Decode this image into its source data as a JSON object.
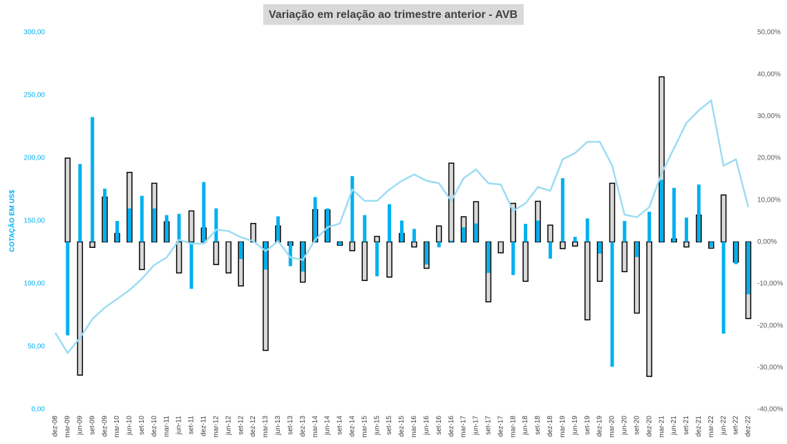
{
  "chart_data": {
    "type": "bar",
    "title": "Variação em relação ao trimestre anterior - AVB",
    "ylabel": "COTAÇÃO EM US$",
    "categories": [
      "dez-08",
      "mar-09",
      "jun-09",
      "set-09",
      "dez-09",
      "mar-10",
      "jun-10",
      "set-10",
      "dez-10",
      "mar-11",
      "jun-11",
      "set-11",
      "dez-11",
      "mar-12",
      "jun-12",
      "set-12",
      "dez-12",
      "mar-13",
      "jun-13",
      "set-13",
      "dez-13",
      "mar-14",
      "jun-14",
      "set-14",
      "dez-14",
      "mar-15",
      "jun-15",
      "set-15",
      "dez-15",
      "mar-16",
      "jun-16",
      "set-16",
      "dez-16",
      "mar-17",
      "jun-17",
      "set-17",
      "dez-17",
      "mar-18",
      "jun-18",
      "set-18",
      "dez-18",
      "mar-19",
      "jun-19",
      "set-19",
      "dez-19",
      "mar-20",
      "jun-20",
      "set-20",
      "dez-20",
      "mar-21",
      "jun-21",
      "set-21",
      "dez-21",
      "mar-22",
      "jun-22",
      "set-22",
      "dez-22"
    ],
    "series": [
      {
        "type": "bar",
        "axis": "y2",
        "color": "#d9d9d9",
        "edgecolor": "#000000",
        "values": [
          null,
          20,
          -31.8,
          -1.3,
          10.7,
          2,
          16.6,
          -6.6,
          14,
          4.8,
          -7.4,
          7.4,
          3.3,
          -5.4,
          -7.4,
          -10.5,
          4.4,
          -25.9,
          3.8,
          -0.8,
          -9.6,
          7.7,
          7.6,
          -0.8,
          -2.1,
          -9.2,
          1.3,
          -8.4,
          2,
          -1.2,
          -6.3,
          3.8,
          18.8,
          6,
          9.6,
          -14.3,
          -2.6,
          9.2,
          -9.4,
          9.7,
          4,
          -1.6,
          -1,
          -18.6,
          -9.4,
          14,
          -7.1,
          -17,
          -32.1,
          39.4,
          0.7,
          -1.2,
          6.4,
          -1.5,
          11.2,
          -4.8,
          -18.3
        ]
      },
      {
        "type": "bar",
        "axis": "y2",
        "color": "#00b0f0",
        "values": [
          null,
          -22.3,
          18.6,
          29.8,
          12.7,
          5,
          8,
          11,
          8,
          6.4,
          6.7,
          -11.2,
          14.3,
          8,
          0,
          -4.1,
          0,
          -6.6,
          6.1,
          -5.8,
          -7.1,
          10.7,
          8,
          -0.8,
          15.7,
          6.4,
          -8.2,
          9,
          5.1,
          3.1,
          -5.4,
          -1.3,
          0.3,
          3.5,
          4.4,
          -7.4,
          0,
          -7.9,
          4.3,
          5.1,
          -4,
          15.2,
          1.2,
          5.6,
          -2.8,
          -29.8,
          5,
          -3.6,
          7.2,
          14.8,
          12.9,
          5.8,
          13.7,
          -1.2,
          -21.9,
          -5.3,
          -12.5
        ]
      },
      {
        "type": "line",
        "axis": "y",
        "color": "#9bdcf3",
        "values": [
          61,
          45,
          57,
          72,
          81,
          88,
          95,
          104,
          115,
          121,
          135,
          132,
          132,
          143,
          142,
          137,
          134,
          126,
          134,
          121,
          119,
          135,
          145,
          148,
          175,
          166,
          166,
          175,
          182,
          187,
          182,
          180,
          166,
          184,
          191,
          180,
          179,
          158,
          164,
          177,
          174,
          199,
          204,
          213,
          213,
          194,
          155,
          153,
          161,
          188,
          208,
          228,
          238,
          246,
          194,
          199,
          161
        ]
      }
    ],
    "ylim": [
      0,
      300
    ],
    "yticks": [
      {
        "value": 0,
        "label": "0,00"
      },
      {
        "value": 50,
        "label": "50,00"
      },
      {
        "value": 100,
        "label": "100,00"
      },
      {
        "value": 150,
        "label": "150,00"
      },
      {
        "value": 200,
        "label": "200,00"
      },
      {
        "value": 250,
        "label": "250,00"
      },
      {
        "value": 300,
        "label": "300,00"
      }
    ],
    "y2lim": [
      -40,
      50
    ],
    "y2ticks": [
      {
        "value": -40,
        "label": "-40,00%"
      },
      {
        "value": -30,
        "label": "-30,00%"
      },
      {
        "value": -20,
        "label": "-20,00%"
      },
      {
        "value": -10,
        "label": "-10,00%"
      },
      {
        "value": 0,
        "label": "0,00%"
      },
      {
        "value": 10,
        "label": "10,00%"
      },
      {
        "value": 20,
        "label": "20,00%"
      },
      {
        "value": 30,
        "label": "30,00%"
      },
      {
        "value": 40,
        "label": "40,00%"
      },
      {
        "value": 50,
        "label": "50,00%"
      }
    ],
    "ytick_color": "#00b0f0",
    "y2tick_color": "#595959"
  }
}
